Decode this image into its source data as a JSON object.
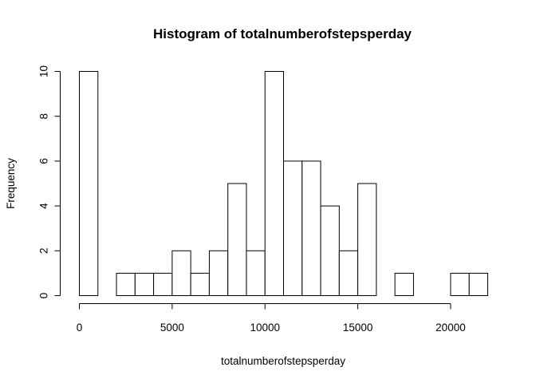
{
  "chart_data": {
    "type": "bar",
    "title": "Histogram of totalnumberofstepsperday",
    "xlabel": "totalnumberofstepsperday",
    "ylabel": "Frequency",
    "bin_width": 1000,
    "bins_start": [
      0,
      1000,
      2000,
      3000,
      4000,
      5000,
      6000,
      7000,
      8000,
      9000,
      10000,
      11000,
      12000,
      13000,
      14000,
      15000,
      16000,
      17000,
      18000,
      19000,
      20000,
      21000
    ],
    "values": [
      10,
      0,
      1,
      1,
      1,
      2,
      1,
      2,
      5,
      2,
      10,
      6,
      6,
      4,
      2,
      5,
      0,
      1,
      0,
      0,
      1,
      1
    ],
    "xlim": [
      0,
      22000
    ],
    "ylim": [
      0,
      10
    ],
    "x_ticks": [
      "0",
      "5000",
      "10000",
      "15000",
      "20000"
    ],
    "y_ticks": [
      "0",
      "2",
      "4",
      "6",
      "8",
      "10"
    ],
    "grid": false,
    "bar_fill": "#ffffff",
    "bar_stroke": "#000000"
  }
}
